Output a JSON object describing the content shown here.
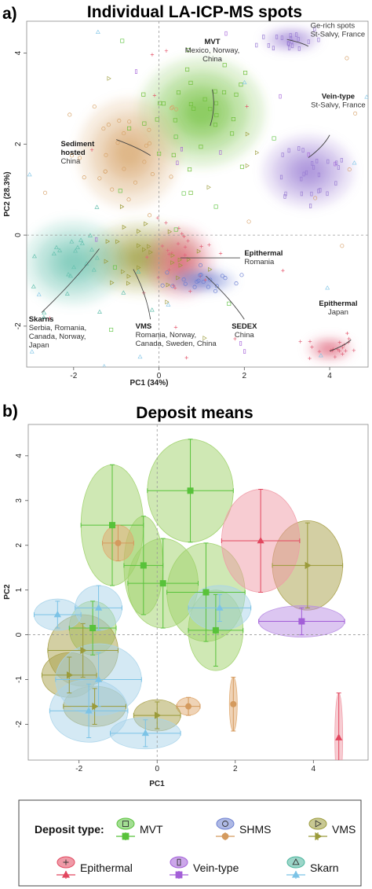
{
  "chart_data": [
    {
      "panel": "a)",
      "title": "Individual LA-ICP-MS spots",
      "type": "scatter",
      "xlabel": "PC1 (34%)",
      "ylabel": "PC2 (28.3%)",
      "xlim": [
        -3.1,
        4.9
      ],
      "ylim": [
        -2.9,
        4.7
      ],
      "xticks": [
        -2,
        0,
        2,
        4
      ],
      "yticks": [
        -2,
        0,
        2,
        4
      ],
      "xtick_labels": [
        "-2",
        "0",
        "2",
        "4"
      ],
      "ytick_labels": [
        "-2",
        "0",
        "2",
        "4"
      ],
      "reference_lines": {
        "x": 0,
        "y": 0
      },
      "groups": [
        {
          "type": "MVT",
          "color": "#6fbf3a",
          "center": [
            1.0,
            2.7
          ],
          "spread": [
            1.1,
            0.9
          ]
        },
        {
          "type": "SHMS",
          "color": "#d7a46a",
          "center": [
            -0.7,
            1.8
          ],
          "spread": [
            0.9,
            0.9
          ]
        },
        {
          "type": "VMS",
          "color": "#9a9a38",
          "center": [
            -0.4,
            -0.5
          ],
          "spread": [
            1.0,
            0.6
          ]
        },
        {
          "type": "Epithermal",
          "color": "#e0647a",
          "center": [
            0.5,
            -0.6
          ],
          "spread": [
            0.6,
            0.6
          ]
        },
        {
          "type": "Epithermal",
          "color": "#e0647a",
          "center": [
            4.0,
            -2.5
          ],
          "spread": [
            0.4,
            0.2
          ]
        },
        {
          "type": "Vein-type",
          "color": "#9b7fd4",
          "center": [
            3.5,
            1.4
          ],
          "spread": [
            0.8,
            0.6
          ]
        },
        {
          "type": "Vein-type",
          "color": "#9b7fd4",
          "center": [
            3.1,
            4.3
          ],
          "spread": [
            0.5,
            0.2
          ]
        },
        {
          "type": "Skarn",
          "color": "#69c2b0",
          "center": [
            -2.0,
            -0.6
          ],
          "spread": [
            0.9,
            0.7
          ]
        },
        {
          "type": "SHMS",
          "color": "#6a7ed1",
          "center": [
            1.0,
            -1.0
          ],
          "spread": [
            0.6,
            0.2
          ]
        }
      ],
      "annotations": [
        {
          "head": "MVT",
          "lines": [
            "Mexico, Norway,",
            "China"
          ]
        },
        {
          "head": "Sediment",
          "lines": [
            "hosted",
            "China"
          ]
        },
        {
          "head": "",
          "lines": [
            "Ge-rich spots",
            "St-Salvy, France"
          ]
        },
        {
          "head": "Vein-type",
          "lines": [
            "St-Salvy, France"
          ]
        },
        {
          "head": "Epithermal",
          "lines": [
            "Romania"
          ]
        },
        {
          "head": "Epithermal",
          "lines": [
            "Japan"
          ]
        },
        {
          "head": "Skarns",
          "lines": [
            "Serbia, Romania,",
            "Canada, Norway,",
            "Japan"
          ]
        },
        {
          "head": "VMS",
          "lines": [
            "Romania, Norway,",
            "Canada, Sweden, China"
          ]
        },
        {
          "head": "SEDEX",
          "lines": [
            "China"
          ]
        }
      ]
    },
    {
      "panel": "b)",
      "title": "Deposit means",
      "type": "scatter",
      "xlabel": "PC1",
      "ylabel": "PC2",
      "xlim": [
        -3.3,
        5.4
      ],
      "ylim": [
        -2.8,
        4.7
      ],
      "xticks": [
        -2,
        0,
        2,
        4
      ],
      "yticks": [
        -2,
        -1,
        0,
        1,
        2,
        3,
        4
      ],
      "xtick_labels": [
        "-2",
        "0",
        "2",
        "4"
      ],
      "ytick_labels": [
        "-2",
        "-1",
        "0",
        "1",
        "2",
        "3",
        "4"
      ],
      "reference_lines": {
        "x": 0,
        "y": 0
      },
      "means": [
        {
          "type": "MVT",
          "x": 0.85,
          "y": 3.22,
          "ex": 1.1,
          "ey": 1.15,
          "ry": 1.15
        },
        {
          "type": "MVT",
          "x": -1.15,
          "y": 2.45,
          "ex": 0.8,
          "ey": 1.35,
          "ry": 1.35
        },
        {
          "type": "MVT",
          "x": -0.35,
          "y": 1.55,
          "ex": 0.5,
          "ey": 1.1,
          "ry": 1.1
        },
        {
          "type": "MVT",
          "x": 0.15,
          "y": 1.15,
          "ex": 0.9,
          "ey": 1.0,
          "ry": 1.0
        },
        {
          "type": "MVT",
          "x": 1.25,
          "y": 0.95,
          "ex": 1.0,
          "ey": 1.1,
          "ry": 1.1
        },
        {
          "type": "MVT",
          "x": 1.5,
          "y": 0.1,
          "ex": 0.7,
          "ey": 0.8,
          "ry": 0.9
        },
        {
          "type": "MVT",
          "x": -1.65,
          "y": 0.15,
          "ex": 0.6,
          "ey": 0.6,
          "ry": 0.6
        },
        {
          "type": "SHMS",
          "x": -1.0,
          "y": 2.05,
          "ex": 0.4,
          "ey": 0.4,
          "ry": 0.4
        },
        {
          "type": "SHMS",
          "x": 0.8,
          "y": -1.6,
          "ex": 0.3,
          "ey": 0.2,
          "ry": 0.2
        },
        {
          "type": "SHMS",
          "x": 1.95,
          "y": -1.55,
          "ex": 0.05,
          "ey": 0.6,
          "ry": 0.6
        },
        {
          "type": "VMS",
          "x": 3.85,
          "y": 1.55,
          "ex": 0.9,
          "ey": 0.95,
          "ry": 1.0
        },
        {
          "type": "VMS",
          "x": -1.9,
          "y": -0.35,
          "ex": 0.9,
          "ey": 0.6,
          "ry": 0.8
        },
        {
          "type": "VMS",
          "x": -2.25,
          "y": -0.9,
          "ex": 0.7,
          "ey": 0.4,
          "ry": 0.5
        },
        {
          "type": "VMS",
          "x": -1.6,
          "y": -1.6,
          "ex": 0.8,
          "ey": 0.4,
          "ry": 0.45
        },
        {
          "type": "VMS",
          "x": 0.0,
          "y": -1.8,
          "ex": 0.6,
          "ey": 0.3,
          "ry": 0.35
        },
        {
          "type": "Epithermal",
          "x": 2.65,
          "y": 2.1,
          "ex": 1.0,
          "ey": 1.15,
          "ry": 1.15
        },
        {
          "type": "Epithermal",
          "x": 4.65,
          "y": -2.3,
          "ex": 0.02,
          "ey": 1.0,
          "ry": 1.0
        },
        {
          "type": "Vein-type",
          "x": 3.7,
          "y": 0.3,
          "ex": 1.1,
          "ey": 0.3,
          "ry": 0.35
        },
        {
          "type": "Skarn",
          "x": 1.6,
          "y": 0.6,
          "ex": 0.8,
          "ey": 0.3,
          "ry": 0.5
        },
        {
          "type": "Skarn",
          "x": -2.55,
          "y": 0.45,
          "ex": 0.6,
          "ey": 0.3,
          "ry": 0.35
        },
        {
          "type": "Skarn",
          "x": -1.5,
          "y": 0.6,
          "ex": 0.6,
          "ey": 0.5,
          "ry": 0.5
        },
        {
          "type": "Skarn",
          "x": -1.5,
          "y": -1.0,
          "ex": 1.1,
          "ey": 0.6,
          "ry": 0.8
        },
        {
          "type": "Skarn",
          "x": -1.75,
          "y": -1.7,
          "ex": 1.0,
          "ey": 0.6,
          "ry": 0.7
        },
        {
          "type": "Skarn",
          "x": -0.3,
          "y": -2.2,
          "ex": 0.9,
          "ey": 0.3,
          "ry": 0.35
        }
      ]
    }
  ],
  "legend": {
    "title": "Deposit type:",
    "items": [
      {
        "label": "MVT",
        "color": "#58c23a",
        "marker": "square"
      },
      {
        "label": "SHMS",
        "color": "#d49a5e",
        "color2": "#6c7fd0",
        "marker": "circle"
      },
      {
        "label": "VMS",
        "color": "#9b9b3a",
        "marker": "triangle-right"
      },
      {
        "label": "Epithermal",
        "color": "#e2475f",
        "marker": "triangle"
      },
      {
        "label": "Vein-type",
        "color": "#a35fd8",
        "marker": "square"
      },
      {
        "label": "Skarn",
        "color": "#7cc3e6",
        "color2": "#4ab59c",
        "marker": "triangle"
      }
    ]
  },
  "colors": {
    "MVT": "#58c23a",
    "SHMS": "#d49a5e",
    "VMS": "#9b9b3a",
    "Epithermal": "#e2475f",
    "Vein-type": "#a35fd8",
    "Skarn": "#7cc3e6"
  }
}
